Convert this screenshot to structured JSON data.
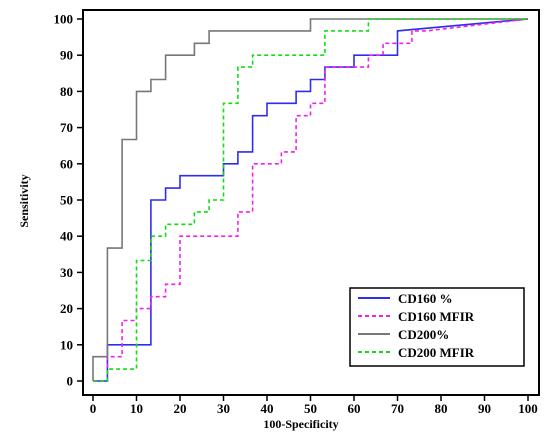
{
  "chart_data": {
    "type": "line",
    "xlabel": "100-Specificity",
    "ylabel": "Sensitivity",
    "xlim": [
      0,
      100
    ],
    "ylim": [
      0,
      100
    ],
    "xticks": [
      "0",
      "10",
      "20",
      "30",
      "40",
      "50",
      "60",
      "70",
      "80",
      "90",
      "100"
    ],
    "yticks": [
      "0",
      "10",
      "20",
      "30",
      "40",
      "50",
      "60",
      "70",
      "80",
      "90",
      "100"
    ],
    "grid": false,
    "legend_position": "bottom-right",
    "series": [
      {
        "name": "CD160 %",
        "color": "#2d2df0",
        "dash": "solid",
        "points": [
          [
            0,
            0
          ],
          [
            3.3,
            0
          ],
          [
            3.3,
            10
          ],
          [
            13.3,
            10
          ],
          [
            13.3,
            50
          ],
          [
            16.7,
            50
          ],
          [
            16.7,
            53.3
          ],
          [
            20,
            53.3
          ],
          [
            20,
            56.7
          ],
          [
            30,
            56.7
          ],
          [
            30,
            60
          ],
          [
            33.3,
            60
          ],
          [
            33.3,
            63.3
          ],
          [
            36.7,
            63.3
          ],
          [
            36.7,
            73.3
          ],
          [
            40,
            73.3
          ],
          [
            40,
            76.7
          ],
          [
            46.7,
            76.7
          ],
          [
            46.7,
            80
          ],
          [
            50,
            80
          ],
          [
            50,
            83.3
          ],
          [
            53.3,
            83.3
          ],
          [
            53.3,
            86.7
          ],
          [
            60,
            86.7
          ],
          [
            60,
            90
          ],
          [
            70,
            90
          ],
          [
            70,
            96.7
          ],
          [
            100,
            100
          ]
        ]
      },
      {
        "name": "CD160 MFIR",
        "color": "#ee22ee",
        "dash": "dashed",
        "points": [
          [
            0,
            0
          ],
          [
            3.3,
            0
          ],
          [
            3.3,
            6.7
          ],
          [
            6.7,
            6.7
          ],
          [
            6.7,
            16.7
          ],
          [
            10,
            16.7
          ],
          [
            10,
            20
          ],
          [
            13.3,
            20
          ],
          [
            13.3,
            23.3
          ],
          [
            16.7,
            23.3
          ],
          [
            16.7,
            26.7
          ],
          [
            20,
            26.7
          ],
          [
            20,
            40
          ],
          [
            33.3,
            40
          ],
          [
            33.3,
            46.7
          ],
          [
            36.7,
            46.7
          ],
          [
            36.7,
            60
          ],
          [
            43.3,
            60
          ],
          [
            43.3,
            63.3
          ],
          [
            46.7,
            63.3
          ],
          [
            46.7,
            73.3
          ],
          [
            50,
            73.3
          ],
          [
            50,
            76.7
          ],
          [
            53.3,
            76.7
          ],
          [
            53.3,
            86.7
          ],
          [
            63.3,
            86.7
          ],
          [
            63.3,
            90
          ],
          [
            66.7,
            90
          ],
          [
            66.7,
            93.3
          ],
          [
            73.3,
            93.3
          ],
          [
            73.3,
            96.7
          ],
          [
            76.7,
            96.7
          ],
          [
            100,
            100
          ]
        ]
      },
      {
        "name": "CD200%",
        "color": "#777777",
        "dash": "solid",
        "points": [
          [
            0,
            0
          ],
          [
            0,
            6.7
          ],
          [
            3.3,
            6.7
          ],
          [
            3.3,
            36.7
          ],
          [
            6.7,
            36.7
          ],
          [
            6.7,
            66.7
          ],
          [
            10,
            66.7
          ],
          [
            10,
            80
          ],
          [
            13.3,
            80
          ],
          [
            13.3,
            83.3
          ],
          [
            16.7,
            83.3
          ],
          [
            16.7,
            90
          ],
          [
            23.3,
            90
          ],
          [
            23.3,
            93.3
          ],
          [
            26.7,
            93.3
          ],
          [
            26.7,
            96.7
          ],
          [
            50,
            96.7
          ],
          [
            50,
            100
          ],
          [
            100,
            100
          ]
        ]
      },
      {
        "name": "CD200 MFIR",
        "color": "#11dd11",
        "dash": "dashed",
        "points": [
          [
            0,
            0
          ],
          [
            3.3,
            0
          ],
          [
            3.3,
            3.3
          ],
          [
            10,
            3.3
          ],
          [
            10,
            33.3
          ],
          [
            13.3,
            33.3
          ],
          [
            13.3,
            40
          ],
          [
            16.7,
            40
          ],
          [
            16.7,
            43.3
          ],
          [
            23.3,
            43.3
          ],
          [
            23.3,
            46.7
          ],
          [
            26.7,
            46.7
          ],
          [
            26.7,
            50
          ],
          [
            30,
            50
          ],
          [
            30,
            76.7
          ],
          [
            33.3,
            76.7
          ],
          [
            33.3,
            86.7
          ],
          [
            36.7,
            86.7
          ],
          [
            36.7,
            90
          ],
          [
            53.3,
            90
          ],
          [
            53.3,
            96.7
          ],
          [
            63.3,
            96.7
          ],
          [
            63.3,
            100
          ],
          [
            100,
            100
          ]
        ]
      }
    ]
  }
}
